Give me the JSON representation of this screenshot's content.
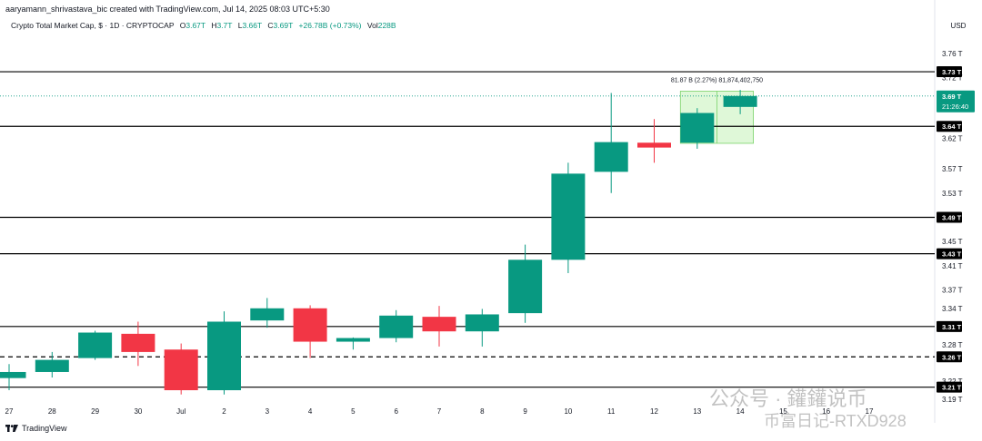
{
  "attribution": "aaryamann_shrivastava_bic created with TradingView.com, Jul 14, 2025 08:03 UTC+5:30",
  "legend": {
    "symbol": "Crypto Total Market Cap, $ · 1D · CRYPTOCAP",
    "open_label": "O",
    "open": "3.67T",
    "high_label": "H",
    "high": "3.7T",
    "low_label": "L",
    "low": "3.66T",
    "close_label": "C",
    "close": "3.69T",
    "change": "+26.78B (+0.73%)",
    "volume_label": "Vol",
    "volume": "228B"
  },
  "currency": "USD",
  "footer": {
    "brand": "TradingView",
    "logo_icon": "tradingview-logo-icon"
  },
  "watermark": {
    "line1": "公众号 · 鑵鑵说币",
    "line2": "币富日记-RTXD928"
  },
  "chart_data": {
    "type": "candlestick",
    "y_unit": "T (trillion USD)",
    "ylim": [
      3.18,
      3.78
    ],
    "grid": false,
    "colors": {
      "up": "#089981",
      "down": "#f23645",
      "level_line": "#000000",
      "range_box": "#b7f0a8"
    },
    "y_ticks": [
      {
        "value": 3.76,
        "label": "3.76 T"
      },
      {
        "value": 3.72,
        "label": "3.72 T"
      },
      {
        "value": 3.67,
        "label": "3.67 T"
      },
      {
        "value": 3.62,
        "label": "3.62 T"
      },
      {
        "value": 3.57,
        "label": "3.57 T"
      },
      {
        "value": 3.53,
        "label": "3.53 T"
      },
      {
        "value": 3.45,
        "label": "3.45 T"
      },
      {
        "value": 3.41,
        "label": "3.41 T"
      },
      {
        "value": 3.37,
        "label": "3.37 T"
      },
      {
        "value": 3.34,
        "label": "3.34 T"
      },
      {
        "value": 3.28,
        "label": "3.28 T"
      },
      {
        "value": 3.22,
        "label": "3.22 T"
      },
      {
        "value": 3.19,
        "label": "3.19 T"
      }
    ],
    "x_ticks": [
      "27",
      "28",
      "29",
      "30",
      "Jul",
      "2",
      "3",
      "4",
      "5",
      "6",
      "7",
      "8",
      "9",
      "10",
      "11",
      "12",
      "13",
      "14",
      "15",
      "16",
      "17"
    ],
    "candles": [
      {
        "date": "27",
        "open": 3.225,
        "high": 3.248,
        "low": 3.205,
        "close": 3.235
      },
      {
        "date": "28",
        "open": 3.235,
        "high": 3.268,
        "low": 3.226,
        "close": 3.255
      },
      {
        "date": "29",
        "open": 3.258,
        "high": 3.303,
        "low": 3.255,
        "close": 3.3
      },
      {
        "date": "30",
        "open": 3.298,
        "high": 3.318,
        "low": 3.245,
        "close": 3.268
      },
      {
        "date": "Jul",
        "open": 3.272,
        "high": 3.282,
        "low": 3.198,
        "close": 3.205
      },
      {
        "date": "2",
        "open": 3.205,
        "high": 3.335,
        "low": 3.198,
        "close": 3.318
      },
      {
        "date": "3",
        "open": 3.32,
        "high": 3.357,
        "low": 3.308,
        "close": 3.34
      },
      {
        "date": "4",
        "open": 3.34,
        "high": 3.345,
        "low": 3.258,
        "close": 3.285
      },
      {
        "date": "5",
        "open": 3.285,
        "high": 3.292,
        "low": 3.272,
        "close": 3.291
      },
      {
        "date": "6",
        "open": 3.291,
        "high": 3.337,
        "low": 3.284,
        "close": 3.328
      },
      {
        "date": "7",
        "open": 3.326,
        "high": 3.344,
        "low": 3.277,
        "close": 3.302
      },
      {
        "date": "8",
        "open": 3.302,
        "high": 3.339,
        "low": 3.277,
        "close": 3.33
      },
      {
        "date": "9",
        "open": 3.332,
        "high": 3.445,
        "low": 3.316,
        "close": 3.42
      },
      {
        "date": "10",
        "open": 3.42,
        "high": 3.58,
        "low": 3.398,
        "close": 3.562
      },
      {
        "date": "11",
        "open": 3.565,
        "high": 3.695,
        "low": 3.53,
        "close": 3.614
      },
      {
        "date": "12",
        "open": 3.613,
        "high": 3.652,
        "low": 3.58,
        "close": 3.605
      },
      {
        "date": "13",
        "open": 3.613,
        "high": 3.67,
        "low": 3.603,
        "close": 3.662
      },
      {
        "date": "14",
        "open": 3.672,
        "high": 3.7,
        "low": 3.66,
        "close": 3.69
      }
    ],
    "levels": [
      {
        "value": 3.73,
        "label": "3.73 T",
        "style": "solid"
      },
      {
        "value": 3.64,
        "label": "3.64 T",
        "style": "solid"
      },
      {
        "value": 3.49,
        "label": "3.49 T",
        "style": "solid"
      },
      {
        "value": 3.43,
        "label": "3.43 T",
        "style": "solid"
      },
      {
        "value": 3.31,
        "label": "3.31 T",
        "style": "solid"
      },
      {
        "value": 3.26,
        "label": "3.26 T",
        "style": "dashed"
      },
      {
        "value": 3.21,
        "label": "3.21 T",
        "style": "solid"
      }
    ],
    "current_price": {
      "value": 3.69,
      "label": "3.69 T",
      "countdown": "21:26:40",
      "color": "#089981"
    },
    "range_annotation": {
      "text": "81.87 B (2.27%) 81,874,402,750",
      "from": 3.612,
      "to": 3.698,
      "start_index": 16,
      "end_index": 17
    }
  }
}
